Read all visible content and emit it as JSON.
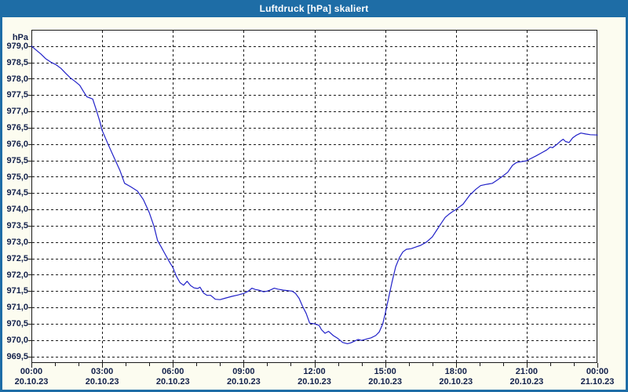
{
  "window": {
    "title": "Luftdruck [hPa] skaliert"
  },
  "colors": {
    "titlebar": "#1e6da6",
    "frame_border": "#1e6da6",
    "background": "#fcfcf0",
    "plot_background": "#ffffff",
    "grid": "#1a1a1a",
    "line": "#2121c8",
    "text": "#12204a",
    "title_text": "#ffffff"
  },
  "chart_data": {
    "type": "line",
    "title": "Luftdruck [hPa] skaliert",
    "unit_label": "hPa",
    "xlabel": "",
    "ylabel": "hPa",
    "grid": "dashed",
    "legend": "none",
    "ylim": [
      969.3,
      979.5
    ],
    "x_hours": [
      0,
      24
    ],
    "yticks": [
      {
        "value": 979.0,
        "label": "979,0"
      },
      {
        "value": 978.5,
        "label": "978,5"
      },
      {
        "value": 978.0,
        "label": "978,0"
      },
      {
        "value": 977.5,
        "label": "977,5"
      },
      {
        "value": 977.0,
        "label": "977,0"
      },
      {
        "value": 976.5,
        "label": "976,5"
      },
      {
        "value": 976.0,
        "label": "976,0"
      },
      {
        "value": 975.5,
        "label": "975,5"
      },
      {
        "value": 975.0,
        "label": "975,0"
      },
      {
        "value": 974.5,
        "label": "974,5"
      },
      {
        "value": 974.0,
        "label": "974,0"
      },
      {
        "value": 973.5,
        "label": "973,5"
      },
      {
        "value": 973.0,
        "label": "973,0"
      },
      {
        "value": 972.5,
        "label": "972,5"
      },
      {
        "value": 972.0,
        "label": "972,0"
      },
      {
        "value": 971.5,
        "label": "971,5"
      },
      {
        "value": 971.0,
        "label": "971,0"
      },
      {
        "value": 970.5,
        "label": "970,5"
      },
      {
        "value": 970.0,
        "label": "970,0"
      },
      {
        "value": 969.5,
        "label": "969,5"
      }
    ],
    "xticks": [
      {
        "hour": 0,
        "time": "00:00",
        "date": "20.10.23"
      },
      {
        "hour": 3,
        "time": "03:00",
        "date": "20.10.23"
      },
      {
        "hour": 6,
        "time": "06:00",
        "date": "20.10.23"
      },
      {
        "hour": 9,
        "time": "09:00",
        "date": "20.10.23"
      },
      {
        "hour": 12,
        "time": "12:00",
        "date": "20.10.23"
      },
      {
        "hour": 15,
        "time": "15:00",
        "date": "20.10.23"
      },
      {
        "hour": 18,
        "time": "18:00",
        "date": "20.10.23"
      },
      {
        "hour": 21,
        "time": "21:00",
        "date": "20.10.23"
      },
      {
        "hour": 24,
        "time": "00:00",
        "date": "21.10.23"
      }
    ],
    "series": [
      {
        "name": "Luftdruck",
        "color": "#2121c8",
        "points": [
          [
            0.0,
            979.0
          ],
          [
            0.2,
            978.88
          ],
          [
            0.4,
            978.76
          ],
          [
            0.6,
            978.62
          ],
          [
            0.85,
            978.5
          ],
          [
            1.05,
            978.43
          ],
          [
            1.25,
            978.32
          ],
          [
            1.45,
            978.17
          ],
          [
            1.65,
            978.03
          ],
          [
            1.85,
            977.92
          ],
          [
            2.05,
            977.8
          ],
          [
            2.2,
            977.62
          ],
          [
            2.35,
            977.45
          ],
          [
            2.6,
            977.38
          ],
          [
            2.75,
            977.05
          ],
          [
            2.9,
            976.7
          ],
          [
            3.0,
            976.42
          ],
          [
            3.25,
            976.0
          ],
          [
            3.5,
            975.6
          ],
          [
            3.75,
            975.2
          ],
          [
            3.95,
            974.8
          ],
          [
            4.2,
            974.7
          ],
          [
            4.5,
            974.56
          ],
          [
            4.75,
            974.3
          ],
          [
            5.0,
            973.9
          ],
          [
            5.2,
            973.48
          ],
          [
            5.35,
            973.05
          ],
          [
            5.5,
            972.86
          ],
          [
            5.65,
            972.66
          ],
          [
            5.85,
            972.4
          ],
          [
            6.0,
            972.22
          ],
          [
            6.15,
            971.95
          ],
          [
            6.3,
            971.76
          ],
          [
            6.45,
            971.68
          ],
          [
            6.6,
            971.8
          ],
          [
            6.75,
            971.67
          ],
          [
            6.9,
            971.6
          ],
          [
            7.05,
            971.58
          ],
          [
            7.15,
            971.62
          ],
          [
            7.3,
            971.44
          ],
          [
            7.45,
            971.37
          ],
          [
            7.6,
            971.37
          ],
          [
            7.8,
            971.25
          ],
          [
            8.0,
            971.24
          ],
          [
            8.2,
            971.28
          ],
          [
            8.5,
            971.34
          ],
          [
            8.75,
            971.38
          ],
          [
            9.0,
            971.43
          ],
          [
            9.2,
            971.5
          ],
          [
            9.35,
            971.59
          ],
          [
            9.5,
            971.55
          ],
          [
            9.65,
            971.53
          ],
          [
            9.85,
            971.48
          ],
          [
            10.0,
            971.5
          ],
          [
            10.15,
            971.54
          ],
          [
            10.3,
            971.59
          ],
          [
            10.45,
            971.56
          ],
          [
            10.7,
            971.53
          ],
          [
            10.9,
            971.51
          ],
          [
            11.05,
            971.5
          ],
          [
            11.2,
            971.43
          ],
          [
            11.35,
            971.28
          ],
          [
            11.5,
            971.03
          ],
          [
            11.65,
            970.82
          ],
          [
            11.8,
            970.52
          ],
          [
            12.0,
            970.5
          ],
          [
            12.2,
            970.45
          ],
          [
            12.3,
            970.32
          ],
          [
            12.45,
            970.21
          ],
          [
            12.6,
            970.27
          ],
          [
            12.8,
            970.14
          ],
          [
            13.0,
            970.05
          ],
          [
            13.2,
            969.93
          ],
          [
            13.4,
            969.89
          ],
          [
            13.55,
            969.92
          ],
          [
            13.7,
            969.97
          ],
          [
            13.85,
            970.02
          ],
          [
            14.0,
            969.99
          ],
          [
            14.2,
            970.03
          ],
          [
            14.4,
            970.07
          ],
          [
            14.6,
            970.14
          ],
          [
            14.75,
            970.25
          ],
          [
            14.9,
            970.5
          ],
          [
            15.0,
            970.8
          ],
          [
            15.15,
            971.3
          ],
          [
            15.3,
            971.8
          ],
          [
            15.45,
            972.25
          ],
          [
            15.6,
            972.52
          ],
          [
            15.75,
            972.7
          ],
          [
            15.9,
            972.78
          ],
          [
            16.1,
            972.8
          ],
          [
            16.3,
            972.85
          ],
          [
            16.5,
            972.9
          ],
          [
            16.75,
            973.0
          ],
          [
            17.0,
            973.16
          ],
          [
            17.2,
            973.38
          ],
          [
            17.4,
            973.6
          ],
          [
            17.55,
            973.76
          ],
          [
            17.7,
            973.85
          ],
          [
            17.85,
            973.93
          ],
          [
            18.0,
            974.0
          ],
          [
            18.3,
            974.16
          ],
          [
            18.6,
            974.45
          ],
          [
            18.85,
            974.62
          ],
          [
            19.05,
            974.73
          ],
          [
            19.3,
            974.77
          ],
          [
            19.55,
            974.8
          ],
          [
            19.75,
            974.9
          ],
          [
            19.95,
            975.0
          ],
          [
            20.2,
            975.14
          ],
          [
            20.4,
            975.35
          ],
          [
            20.55,
            975.43
          ],
          [
            20.75,
            975.46
          ],
          [
            21.0,
            975.49
          ],
          [
            21.15,
            975.55
          ],
          [
            21.4,
            975.64
          ],
          [
            21.6,
            975.72
          ],
          [
            21.85,
            975.82
          ],
          [
            22.0,
            975.91
          ],
          [
            22.1,
            975.89
          ],
          [
            22.3,
            976.0
          ],
          [
            22.45,
            976.1
          ],
          [
            22.55,
            976.15
          ],
          [
            22.65,
            976.08
          ],
          [
            22.8,
            976.05
          ],
          [
            22.95,
            976.19
          ],
          [
            23.1,
            976.27
          ],
          [
            23.3,
            976.34
          ],
          [
            23.5,
            976.31
          ],
          [
            23.7,
            976.29
          ],
          [
            24.0,
            976.28
          ]
        ]
      }
    ]
  }
}
